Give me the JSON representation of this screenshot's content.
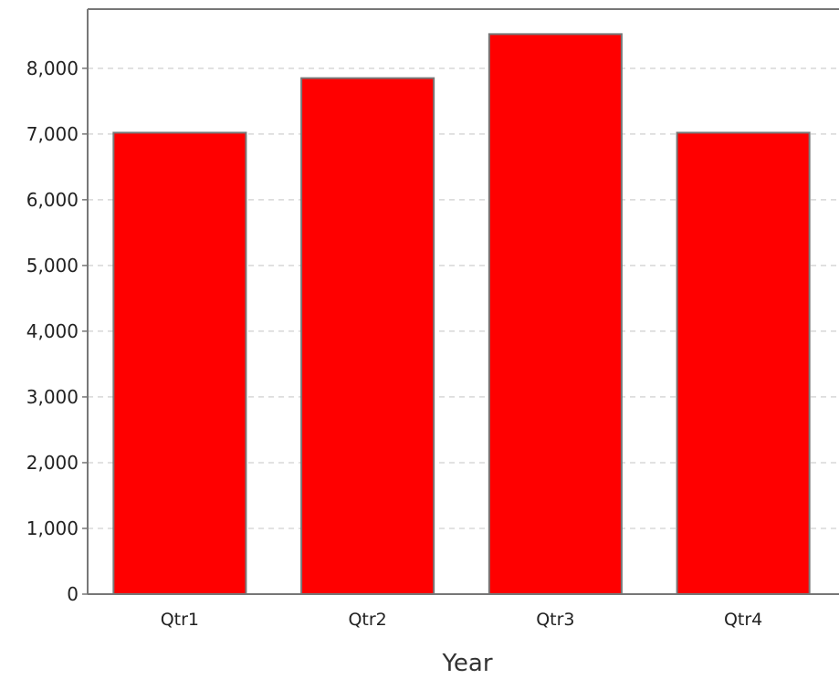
{
  "chart_data": {
    "type": "bar",
    "title": "",
    "xlabel": "Year",
    "ylabel": "",
    "categories": [
      "Qtr1",
      "Qtr2",
      "Qtr3",
      "Qtr4"
    ],
    "values": [
      7020,
      7850,
      8520,
      7020
    ],
    "ylim": [
      0,
      8900
    ],
    "yticks": [
      0,
      1000,
      2000,
      3000,
      4000,
      5000,
      6000,
      7000,
      8000
    ],
    "ytick_labels": [
      "0",
      "1,000",
      "2,000",
      "3,000",
      "4,000",
      "5,000",
      "6,000",
      "7,000",
      "8,000"
    ],
    "grid": true,
    "legend": "none",
    "colors": {
      "bar_fill": "#ff0000",
      "bar_stroke": "#777777",
      "grid": "#d8d8d8",
      "axis": "#777777"
    }
  }
}
